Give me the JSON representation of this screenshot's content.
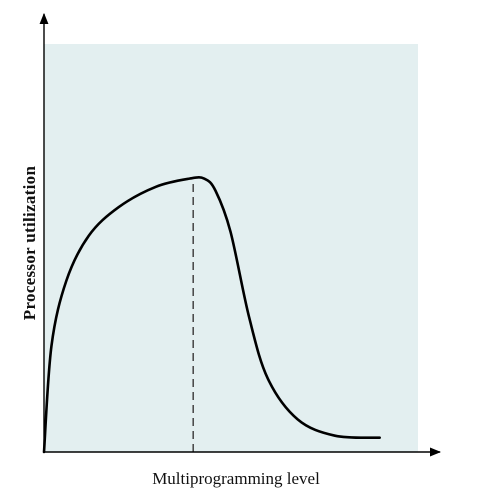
{
  "chart_data": {
    "type": "line",
    "title": "",
    "xlabel": "Multiprogramming level",
    "ylabel": "Processor utilization",
    "xlim": [
      0,
      1
    ],
    "ylim": [
      0,
      1
    ],
    "ticks": "none",
    "grid": false,
    "series": [
      {
        "style": "solid",
        "x": [
          0.0,
          0.02,
          0.06,
          0.12,
          0.2,
          0.3,
          0.39,
          0.43,
          0.46,
          0.5,
          0.55,
          0.6,
          0.68,
          0.78,
          0.9
        ],
        "values": [
          0.0,
          0.26,
          0.42,
          0.53,
          0.6,
          0.65,
          0.67,
          0.67,
          0.64,
          0.54,
          0.33,
          0.18,
          0.08,
          0.04,
          0.035
        ]
      }
    ],
    "annotations": [
      {
        "type": "vertical-dashed-line",
        "x": 0.4,
        "y_from": 0.0,
        "y_to": 0.67
      }
    ]
  },
  "colors": {
    "plot_background": "#e3eff0",
    "line": "#000000",
    "axis": "#000000"
  }
}
